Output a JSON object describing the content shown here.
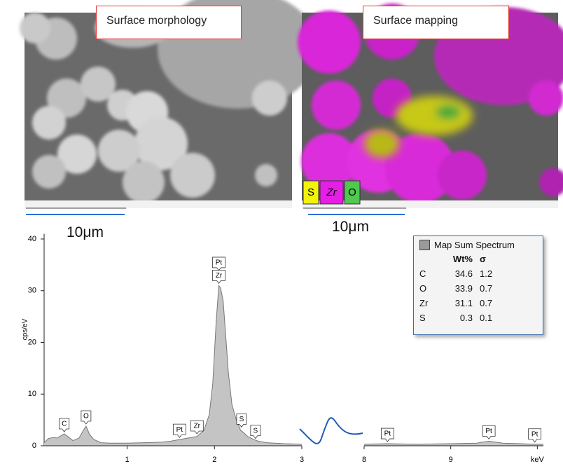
{
  "panels": [
    {
      "caption": "Surface morphology",
      "scale": "10μm"
    },
    {
      "caption": "Surface mapping",
      "scale": "10μm",
      "elements": [
        {
          "label": "S",
          "color": "#f2f20a"
        },
        {
          "label": "Zr",
          "color": "#e61ee6"
        },
        {
          "label": "O",
          "color": "#4fc94f"
        }
      ]
    }
  ],
  "chart_data": {
    "type": "area",
    "ylabel": "cps/eV",
    "color": "#c4c4c4",
    "ylim": [
      0,
      41
    ],
    "yticks": [
      0,
      10,
      20,
      30,
      40
    ],
    "segments": [
      {
        "xlim": [
          0.05,
          3.0
        ],
        "xticks": [
          1,
          2,
          3
        ],
        "x": [
          0.05,
          0.1,
          0.15,
          0.2,
          0.25,
          0.28,
          0.32,
          0.38,
          0.45,
          0.5,
          0.53,
          0.57,
          0.62,
          0.7,
          0.8,
          1.0,
          1.2,
          1.4,
          1.5,
          1.6,
          1.7,
          1.8,
          1.88,
          1.94,
          1.98,
          2.02,
          2.05,
          2.07,
          2.1,
          2.13,
          2.16,
          2.2,
          2.25,
          2.3,
          2.33,
          2.38,
          2.45,
          2.5,
          2.6,
          2.8,
          3.0
        ],
        "values": [
          0.6,
          1.4,
          1.6,
          1.5,
          2.0,
          2.3,
          1.8,
          1.0,
          1.5,
          3.0,
          3.8,
          2.2,
          1.2,
          0.6,
          0.5,
          0.5,
          0.6,
          0.7,
          0.9,
          1.2,
          1.5,
          1.8,
          3.0,
          6.0,
          12.0,
          24.0,
          31.0,
          30.5,
          28.0,
          21.0,
          14.0,
          8.0,
          5.0,
          3.0,
          2.6,
          1.8,
          1.2,
          0.9,
          0.6,
          0.4,
          0.3
        ]
      },
      {
        "xlim": [
          8.0,
          10.07
        ],
        "xticks": [
          {
            "value": 8,
            "label": "8"
          },
          9,
          {
            "value": 10,
            "label": "keV"
          }
        ],
        "x": [
          8.0,
          8.27,
          8.6,
          9.0,
          9.3,
          9.44,
          9.6,
          9.8,
          9.97,
          10.07
        ],
        "values": [
          0.3,
          0.4,
          0.3,
          0.4,
          0.5,
          0.9,
          0.5,
          0.4,
          0.3,
          0.3
        ]
      }
    ],
    "annotations": [
      {
        "text": "C",
        "x": 0.28,
        "y": 2.3
      },
      {
        "text": "O",
        "x": 0.53,
        "y": 3.8
      },
      {
        "text": "Pt",
        "x": 1.6,
        "y": 1.2
      },
      {
        "text": "Zr",
        "x": 1.8,
        "y": 1.9
      },
      {
        "text": "Zr",
        "x": 2.05,
        "y": 31.0
      },
      {
        "text": "Pt",
        "x": 2.05,
        "y": 33.5
      },
      {
        "text": "S",
        "x": 2.31,
        "y": 3.2
      },
      {
        "text": "S",
        "x": 2.47,
        "y": 1.0
      },
      {
        "text": "Pt",
        "x": 8.27,
        "y": 0.4
      },
      {
        "text": "Pt",
        "x": 9.44,
        "y": 0.9
      },
      {
        "text": "Pt",
        "x": 9.97,
        "y": 0.3
      }
    ]
  },
  "spectrum_table": {
    "title": "Map Sum Spectrum",
    "header": [
      "Wt%",
      "σ"
    ],
    "rows": [
      [
        "C",
        "34.6",
        "1.2"
      ],
      [
        "O",
        "33.9",
        "0.7"
      ],
      [
        "Zr",
        "31.1",
        "0.7"
      ],
      [
        "S",
        "0.3",
        "0.1"
      ]
    ]
  }
}
